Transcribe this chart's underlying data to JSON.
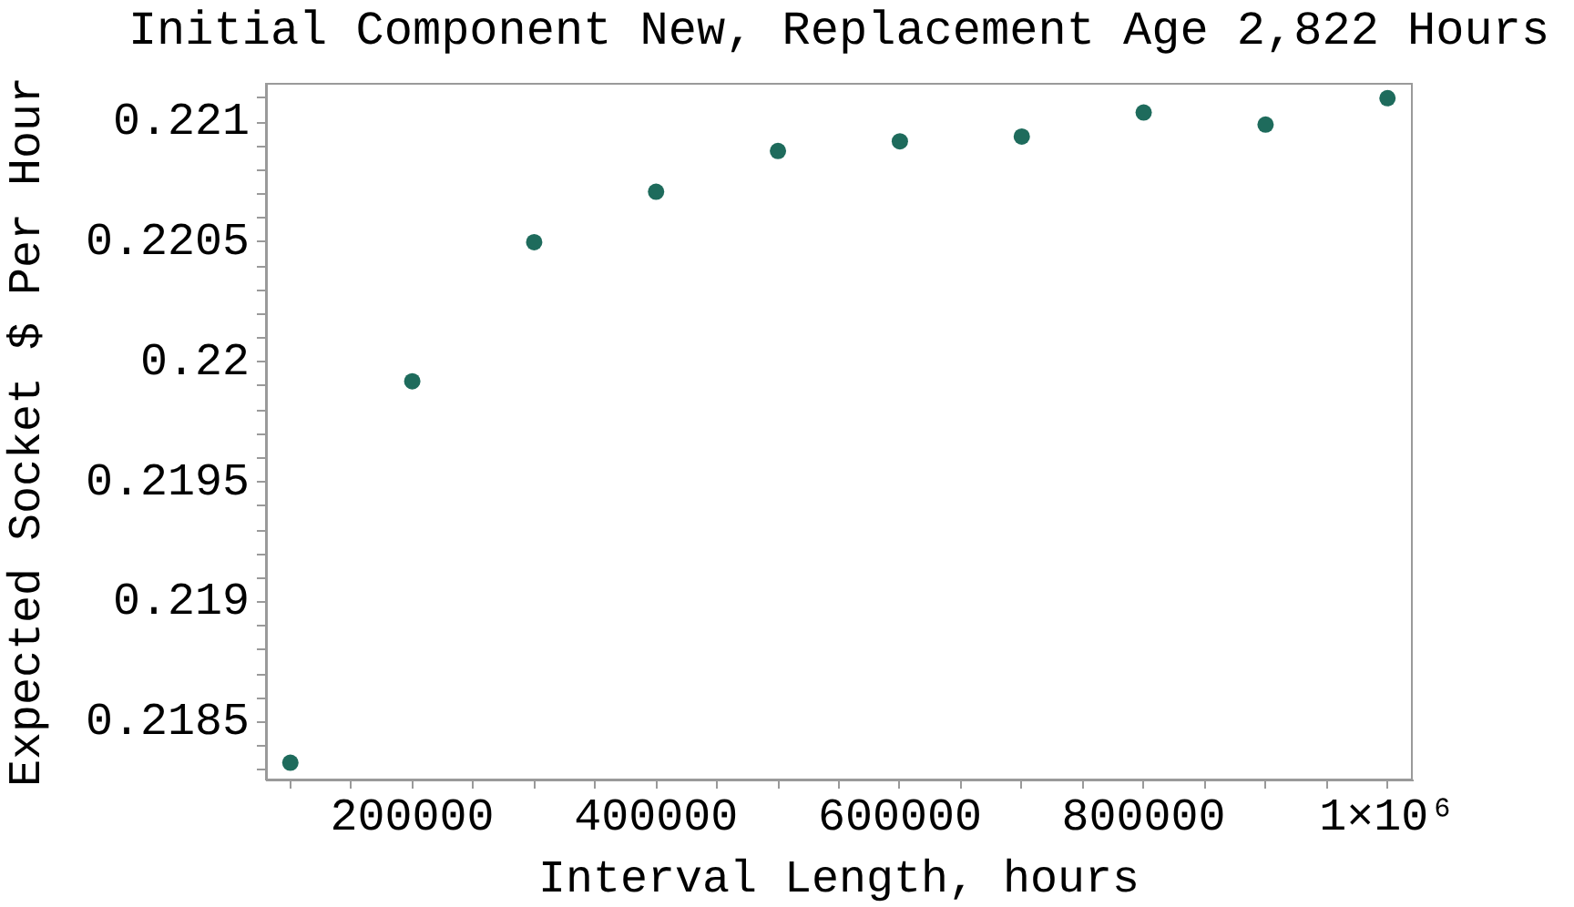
{
  "chart_data": {
    "type": "scatter",
    "title": "Initial Component New, Replacement Age 2,822 Hours",
    "xlabel": "Interval Length, hours",
    "ylabel": "Expected Socket $ Per Hour",
    "x": [
      100000,
      200000,
      300000,
      400000,
      500000,
      600000,
      700000,
      800000,
      900000,
      1000000
    ],
    "series": [
      {
        "color": "#1e6b5c",
        "values": [
          0.21833,
          0.21992,
          0.2205,
          0.22071,
          0.22088,
          0.22092,
          0.22094,
          0.22104,
          0.22099,
          0.2211
        ]
      }
    ],
    "xlim": [
      80000,
      1020000
    ],
    "ylim": [
      0.21826,
      0.22116
    ],
    "xticks": [
      {
        "value": 100000,
        "label": null
      },
      {
        "value": 150000,
        "label": null
      },
      200000,
      {
        "value": 250000,
        "label": null
      },
      {
        "value": 300000,
        "label": null
      },
      {
        "value": 350000,
        "label": null
      },
      400000,
      {
        "value": 450000,
        "label": null
      },
      {
        "value": 500000,
        "label": null
      },
      {
        "value": 550000,
        "label": null
      },
      600000,
      {
        "value": 650000,
        "label": null
      },
      {
        "value": 700000,
        "label": null
      },
      {
        "value": 750000,
        "label": null
      },
      800000,
      {
        "value": 850000,
        "label": null
      },
      {
        "value": 900000,
        "label": null
      },
      {
        "value": 950000,
        "label": null
      },
      {
        "value": 1000000,
        "label": "1×10⁶"
      }
    ],
    "yticks": [
      {
        "value": 0.2183,
        "label": null
      },
      {
        "value": 0.2184,
        "label": null
      },
      0.2185,
      {
        "value": 0.2186,
        "label": null
      },
      {
        "value": 0.2187,
        "label": null
      },
      {
        "value": 0.2188,
        "label": null
      },
      {
        "value": 0.2189,
        "label": null
      },
      0.219,
      {
        "value": 0.2191,
        "label": null
      },
      {
        "value": 0.2192,
        "label": null
      },
      {
        "value": 0.2193,
        "label": null
      },
      {
        "value": 0.2194,
        "label": null
      },
      0.2195,
      {
        "value": 0.2196,
        "label": null
      },
      {
        "value": 0.2197,
        "label": null
      },
      {
        "value": 0.2198,
        "label": null
      },
      {
        "value": 0.2199,
        "label": null
      },
      0.22,
      {
        "value": 0.2201,
        "label": null
      },
      {
        "value": 0.2202,
        "label": null
      },
      {
        "value": 0.2203,
        "label": null
      },
      {
        "value": 0.2204,
        "label": null
      },
      0.2205,
      {
        "value": 0.2206,
        "label": null
      },
      {
        "value": 0.2207,
        "label": null
      },
      {
        "value": 0.2208,
        "label": null
      },
      {
        "value": 0.2209,
        "label": null
      },
      0.221,
      {
        "value": 0.2211,
        "label": null
      }
    ],
    "marker": "circle",
    "grid": false,
    "legend": false
  }
}
